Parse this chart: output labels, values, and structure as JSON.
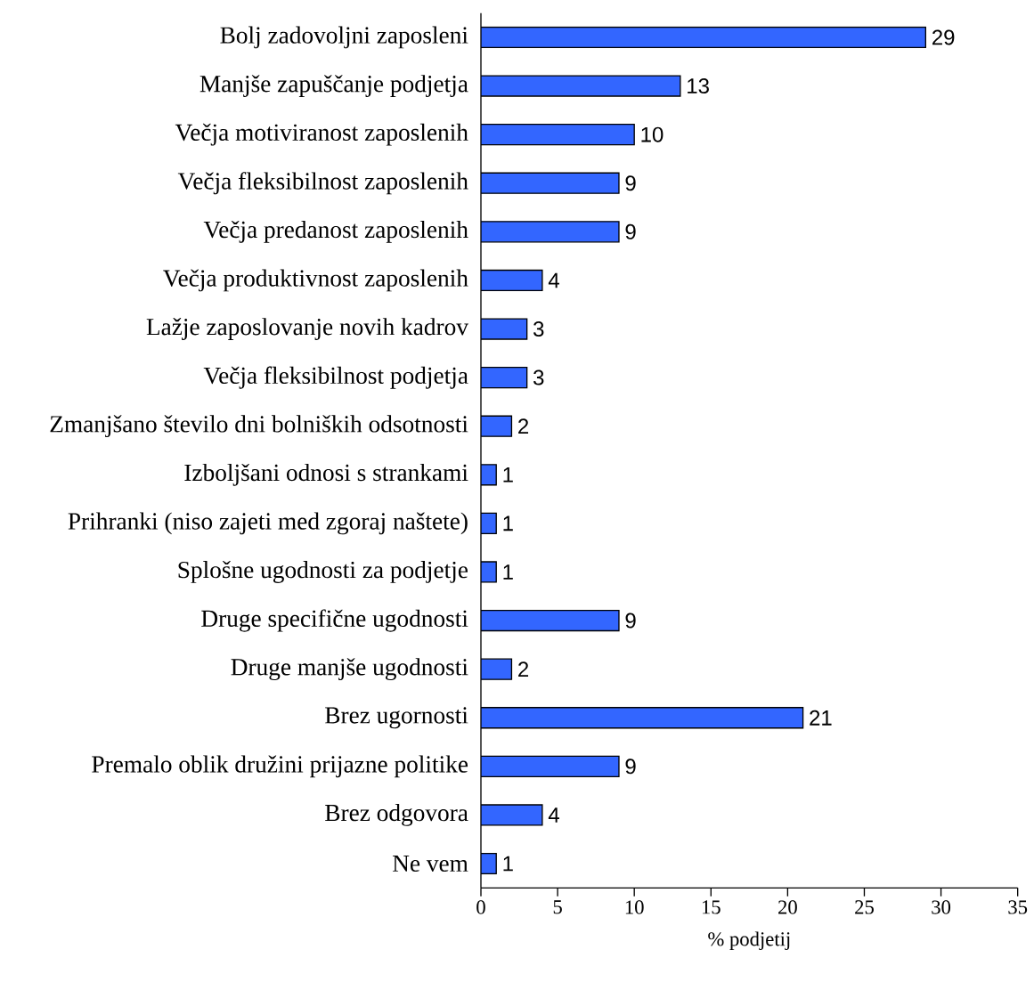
{
  "chart_data": {
    "type": "bar",
    "orientation": "horizontal",
    "xlabel": "% podjetij",
    "categories": [
      "Bolj zadovoljni zaposleni",
      "Manjše zapuščanje podjetja",
      "Večja motiviranost zaposlenih",
      "Večja fleksibilnost zaposlenih",
      "Večja predanost zaposlenih",
      "Večja produktivnost zaposlenih",
      "Lažje zaposlovanje novih kadrov",
      "Večja fleksibilnost podjetja",
      "Zmanjšano število dni bolniških odsotnosti",
      "Izboljšani odnosi s strankami",
      "Prihranki (niso zajeti med zgoraj naštete)",
      "Splošne ugodnosti za podjetje",
      "Druge specifične ugodnosti",
      "Druge manjše ugodnosti",
      "Brez ugornosti",
      "Premalo oblik družini prijazne politike",
      "Brez odgovora",
      "Ne vem"
    ],
    "values": [
      29,
      13,
      10,
      9,
      9,
      4,
      3,
      3,
      2,
      1,
      1,
      1,
      9,
      2,
      21,
      9,
      4,
      1
    ],
    "color": "#3366ff",
    "data_labels": true,
    "xlim": [
      0,
      35
    ],
    "xticks": [
      0,
      5,
      10,
      15,
      20,
      25,
      30,
      35
    ]
  }
}
